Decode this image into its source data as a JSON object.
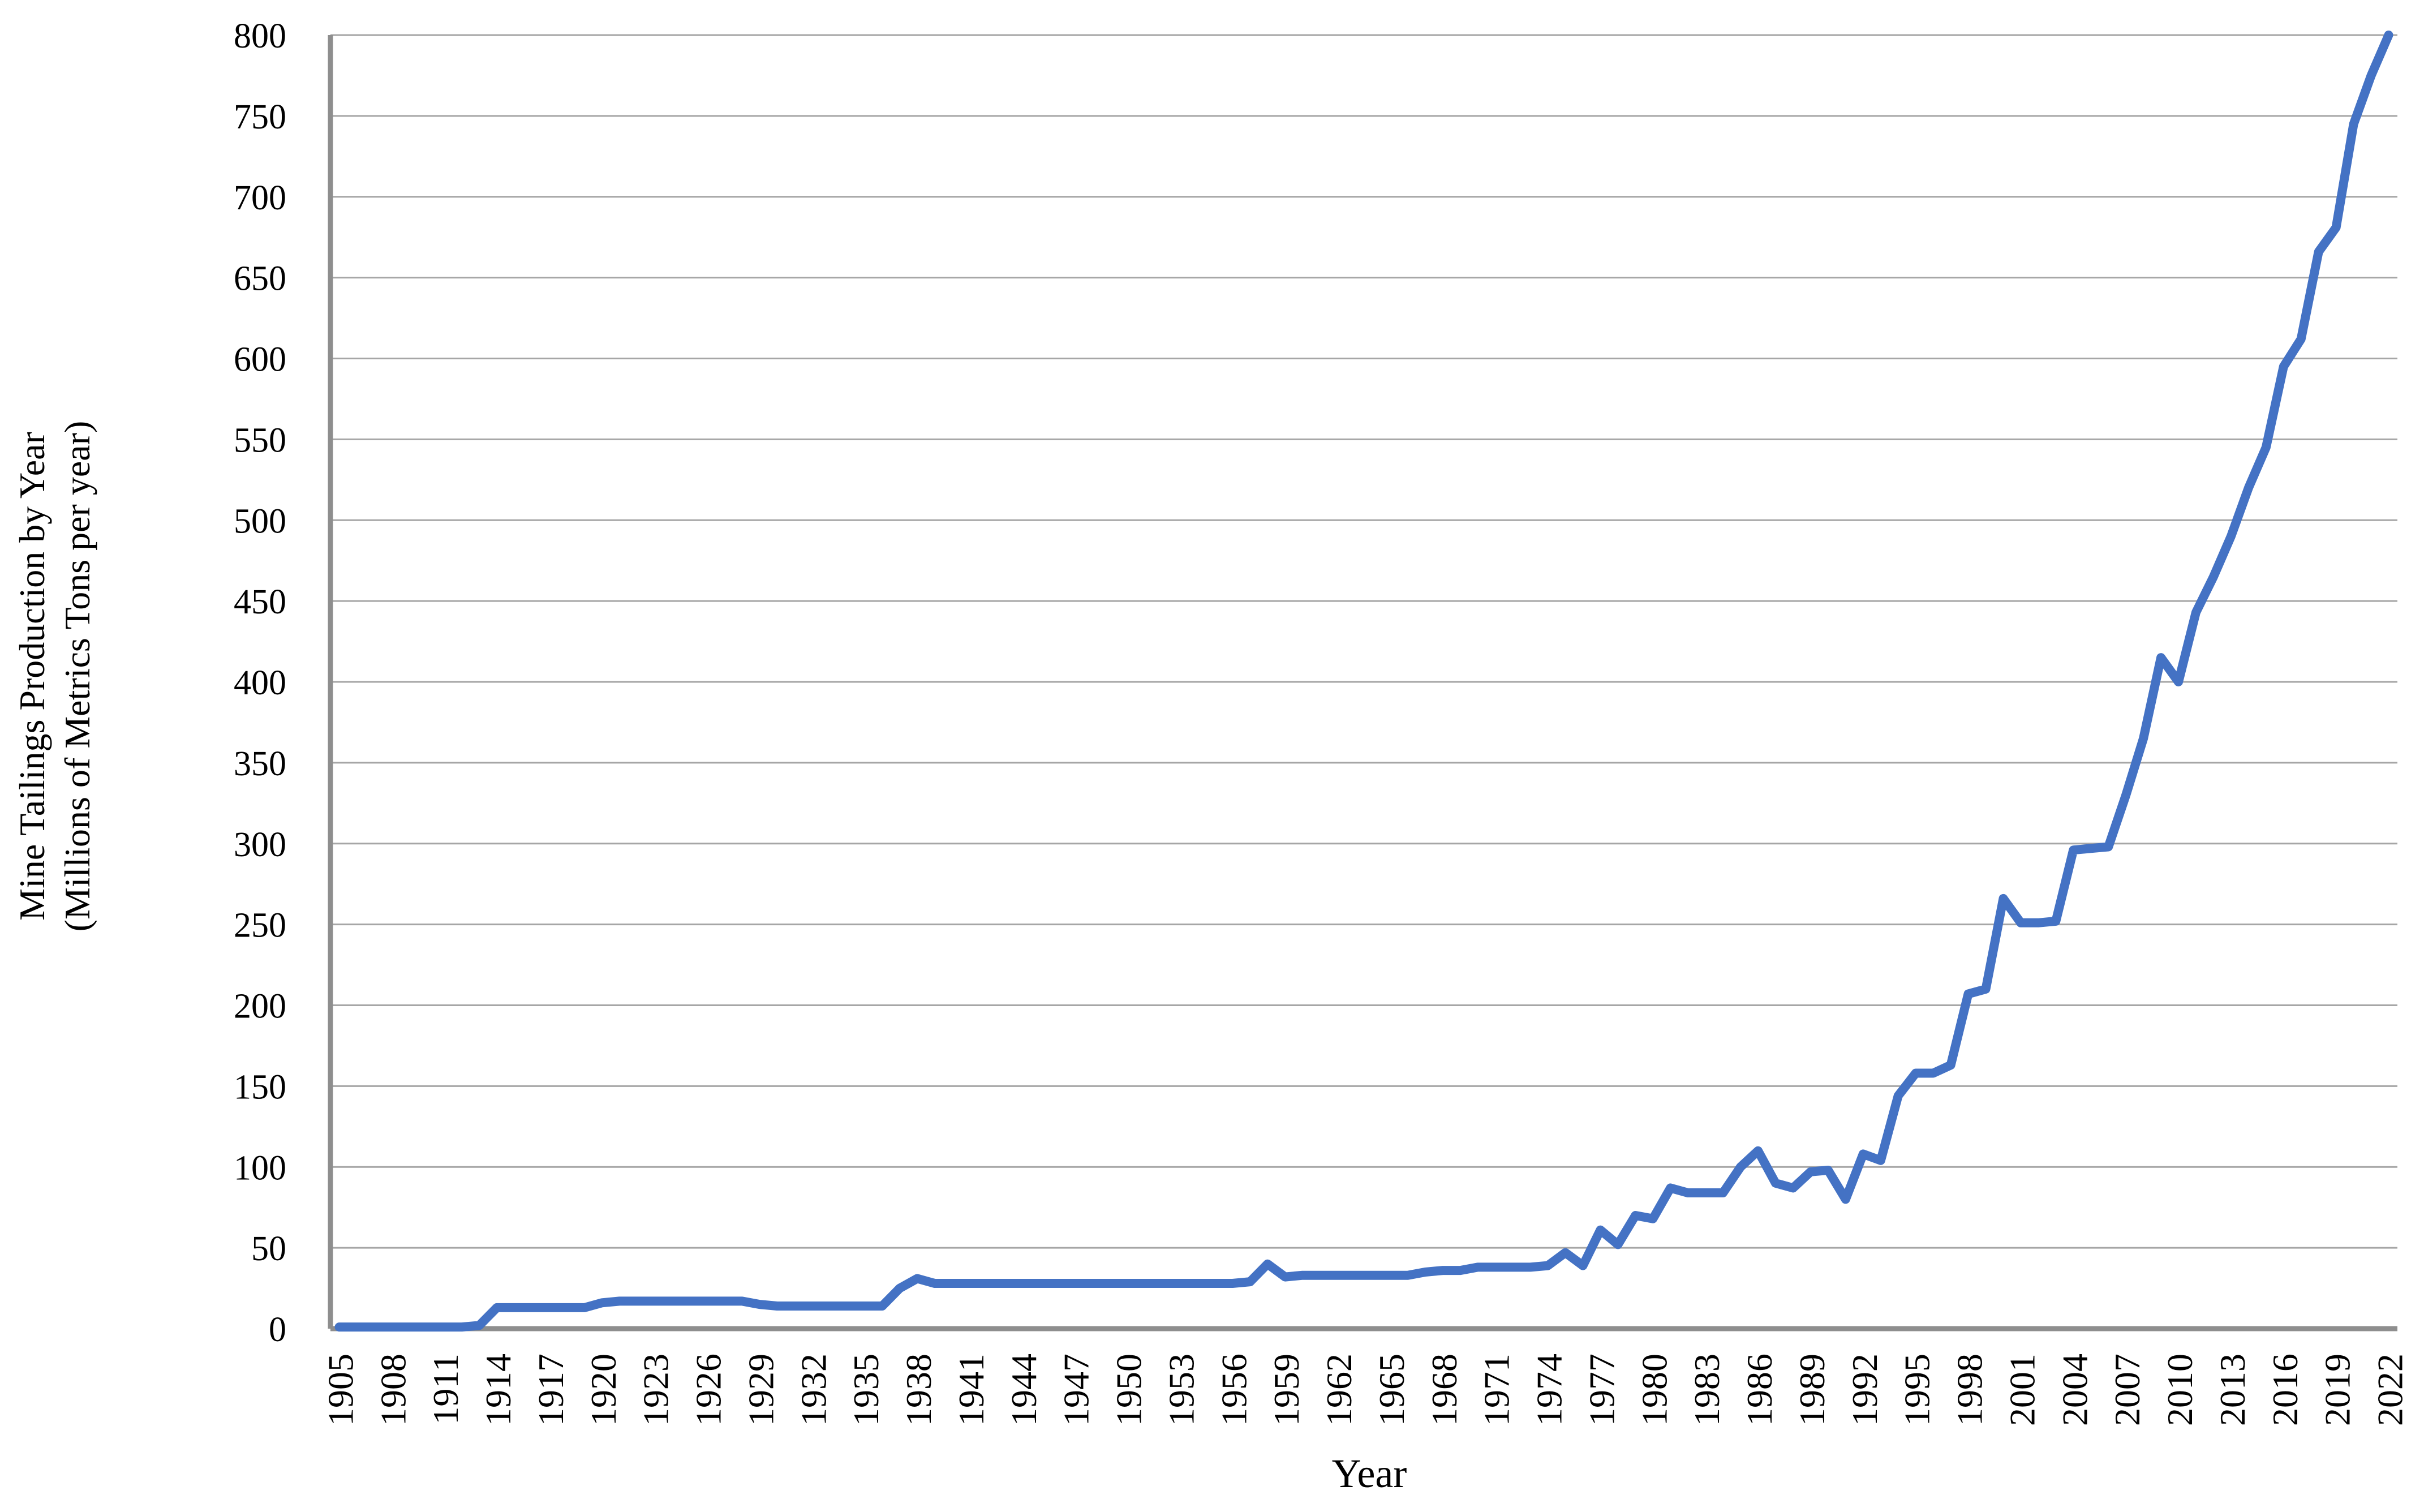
{
  "chart_data": {
    "type": "line",
    "title": "",
    "xlabel": "Year",
    "ylabel_line1": "Mine Tailings Production by Year",
    "ylabel_line2": "(Millions of Metrics Tons per year)",
    "legend": "none",
    "grid": true,
    "ylim": [
      0,
      800
    ],
    "y_tick_step": 50,
    "y_tick_labels": [
      "0",
      "50",
      "100",
      "150",
      "200",
      "250",
      "300",
      "350",
      "400",
      "450",
      "500",
      "550",
      "600",
      "650",
      "700",
      "750",
      "800"
    ],
    "x_tick_labels": [
      "1905",
      "1908",
      "1911",
      "1914",
      "1917",
      "1920",
      "1923",
      "1926",
      "1929",
      "1932",
      "1935",
      "1938",
      "1941",
      "1944",
      "1947",
      "1950",
      "1953",
      "1956",
      "1959",
      "1962",
      "1965",
      "1968",
      "1971",
      "1974",
      "1977",
      "1980",
      "1983",
      "1986",
      "1989",
      "1992",
      "1995",
      "1998",
      "2001",
      "2004",
      "2007",
      "2010",
      "2013",
      "2016",
      "2019",
      "2022"
    ],
    "x_tick_step": 3,
    "series_color": "#4472C4",
    "gridline_color": "#A6A6A6",
    "axis_line_color": "#8E8E8E",
    "years": [
      1905,
      1906,
      1907,
      1908,
      1909,
      1910,
      1911,
      1912,
      1913,
      1914,
      1915,
      1916,
      1917,
      1918,
      1919,
      1920,
      1921,
      1922,
      1923,
      1924,
      1925,
      1926,
      1927,
      1928,
      1929,
      1930,
      1931,
      1932,
      1933,
      1934,
      1935,
      1936,
      1937,
      1938,
      1939,
      1940,
      1941,
      1942,
      1943,
      1944,
      1945,
      1946,
      1947,
      1948,
      1949,
      1950,
      1951,
      1952,
      1953,
      1954,
      1955,
      1956,
      1957,
      1958,
      1959,
      1960,
      1961,
      1962,
      1963,
      1964,
      1965,
      1966,
      1967,
      1968,
      1969,
      1970,
      1971,
      1972,
      1973,
      1974,
      1975,
      1976,
      1977,
      1978,
      1979,
      1980,
      1981,
      1982,
      1983,
      1984,
      1985,
      1986,
      1987,
      1988,
      1989,
      1990,
      1991,
      1992,
      1993,
      1994,
      1995,
      1996,
      1997,
      1998,
      1999,
      2000,
      2001,
      2002,
      2003,
      2004,
      2005,
      2006,
      2007,
      2008,
      2009,
      2010,
      2011,
      2012,
      2013,
      2014,
      2015,
      2016,
      2017,
      2018,
      2019,
      2020,
      2021,
      2022
    ],
    "values": [
      1,
      1,
      1,
      1,
      1,
      1,
      1,
      1,
      2,
      13,
      13,
      13,
      13,
      13,
      13,
      16,
      17,
      17,
      17,
      17,
      17,
      17,
      17,
      17,
      15,
      14,
      14,
      14,
      14,
      14,
      14,
      14,
      25,
      31,
      28,
      28,
      28,
      28,
      28,
      28,
      28,
      28,
      28,
      28,
      28,
      28,
      28,
      28,
      28,
      28,
      28,
      28,
      29,
      40,
      32,
      33,
      33,
      33,
      33,
      33,
      33,
      33,
      35,
      36,
      36,
      38,
      38,
      38,
      38,
      39,
      47,
      39,
      61,
      52,
      70,
      68,
      87,
      84,
      84,
      84,
      100,
      110,
      90,
      87,
      97,
      98,
      80,
      108,
      104,
      144,
      158,
      158,
      163,
      207,
      210,
      266,
      251,
      251,
      252,
      296,
      297,
      298,
      330,
      365,
      415,
      400,
      443,
      465,
      490,
      520,
      545,
      595,
      612,
      666,
      681,
      745,
      775,
      800
    ]
  }
}
